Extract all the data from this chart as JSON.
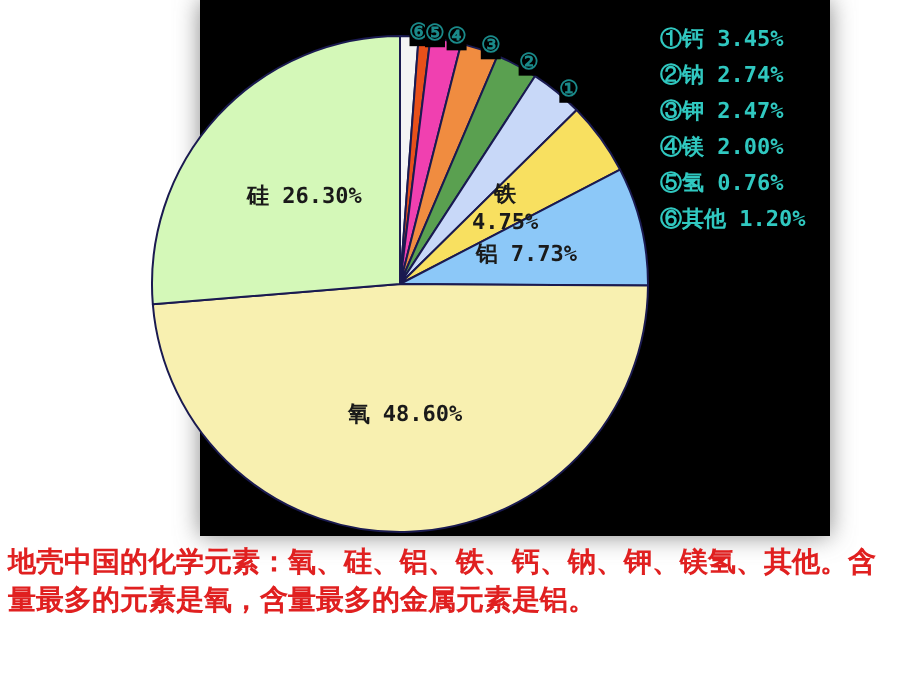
{
  "chart_data": {
    "type": "pie",
    "categories": [
      "⑥",
      "⑤",
      "④",
      "③",
      "②",
      "①",
      "铁",
      "铝",
      "氧",
      "硅"
    ],
    "values": [
      1.2,
      0.76,
      2.0,
      2.47,
      2.74,
      3.45,
      4.75,
      7.73,
      48.6,
      26.3
    ],
    "colors": [
      "#f4f4f4",
      "#e8501a",
      "#f040b0",
      "#f08c40",
      "#5aa050",
      "#c8d8f8",
      "#f8e060",
      "#8cc8f8",
      "#f8f0b0",
      "#d4f8b8"
    ],
    "value_labels": [
      null,
      null,
      null,
      null,
      null,
      null,
      "4.75%",
      "7.73%",
      "48.60%",
      "26.30%"
    ],
    "annotations": [
      "①钙 3.45%",
      "②钠 2.74%",
      "③钾 2.47%",
      "④镁 2.00%",
      "⑤氢 0.76%",
      "⑥其他 1.20%",
      "地壳中国的化学元素：氧、硅、铝、铁、钙、钠、钾、镁氢、其他。含量最多的元素是氧，含量最多的金属元素是铝。"
    ]
  }
}
